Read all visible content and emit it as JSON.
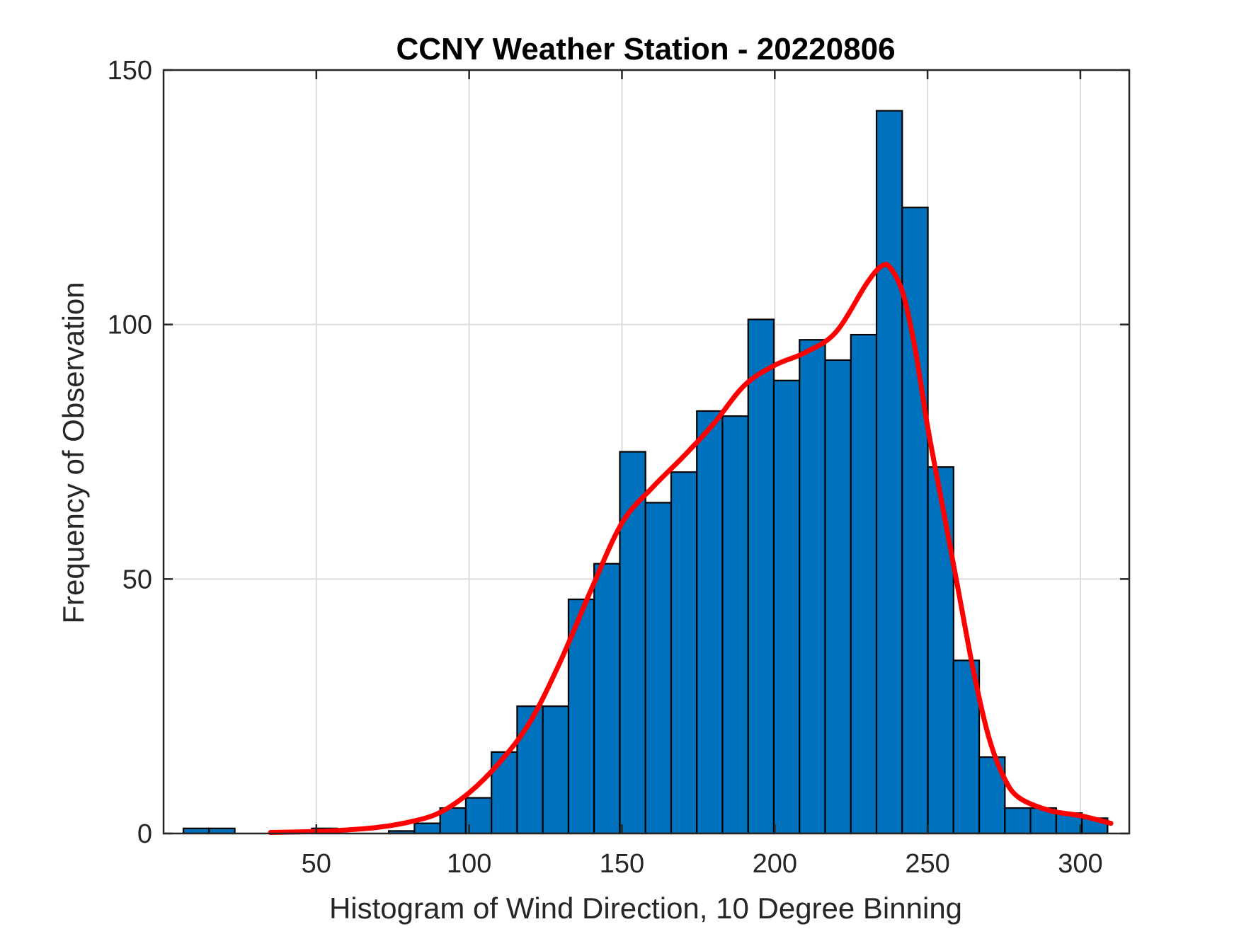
{
  "chart_data": {
    "type": "bar",
    "title": "CCNY Weather Station - 20220806",
    "xlabel": "Histogram of Wind Direction, 10 Degree Binning",
    "ylabel": "Frequency of Observation",
    "xlim": [
      0,
      316
    ],
    "ylim": [
      0,
      150
    ],
    "xticks": [
      50,
      100,
      150,
      200,
      250,
      300
    ],
    "yticks": [
      0,
      50,
      100,
      150
    ],
    "grid": true,
    "bin_width": 8.4,
    "bins": [
      {
        "x_start": 6.5,
        "count": 1
      },
      {
        "x_start": 14.9,
        "count": 1
      },
      {
        "x_start": 48.5,
        "count": 1
      },
      {
        "x_start": 73.7,
        "count": 0.5
      },
      {
        "x_start": 82.1,
        "count": 2
      },
      {
        "x_start": 90.5,
        "count": 5
      },
      {
        "x_start": 98.9,
        "count": 7
      },
      {
        "x_start": 107.3,
        "count": 16
      },
      {
        "x_start": 115.7,
        "count": 25
      },
      {
        "x_start": 124.1,
        "count": 25
      },
      {
        "x_start": 132.5,
        "count": 46
      },
      {
        "x_start": 140.9,
        "count": 53
      },
      {
        "x_start": 149.3,
        "count": 75
      },
      {
        "x_start": 157.7,
        "count": 65
      },
      {
        "x_start": 166.1,
        "count": 71
      },
      {
        "x_start": 174.5,
        "count": 83
      },
      {
        "x_start": 182.9,
        "count": 82
      },
      {
        "x_start": 191.3,
        "count": 101
      },
      {
        "x_start": 199.7,
        "count": 89
      },
      {
        "x_start": 208.1,
        "count": 97
      },
      {
        "x_start": 216.5,
        "count": 93
      },
      {
        "x_start": 224.9,
        "count": 98
      },
      {
        "x_start": 233.3,
        "count": 142
      },
      {
        "x_start": 241.7,
        "count": 123
      },
      {
        "x_start": 250.1,
        "count": 72
      },
      {
        "x_start": 258.5,
        "count": 34
      },
      {
        "x_start": 266.9,
        "count": 15
      },
      {
        "x_start": 275.3,
        "count": 5
      },
      {
        "x_start": 283.7,
        "count": 5
      },
      {
        "x_start": 292.1,
        "count": 4
      },
      {
        "x_start": 300.5,
        "count": 3
      }
    ],
    "fit_curve": {
      "x": [
        35,
        50,
        60,
        70,
        80,
        90,
        100,
        110,
        120,
        130,
        140,
        150,
        160,
        170,
        180,
        190,
        200,
        210,
        220,
        230,
        235,
        238,
        242,
        246,
        250,
        255,
        260,
        265,
        270,
        275,
        280,
        290,
        300,
        310
      ],
      "y": [
        0.2,
        0.4,
        0.7,
        1.2,
        2.2,
        4.0,
        8.0,
        14.0,
        22.0,
        34.0,
        48.0,
        61.0,
        68.0,
        74.0,
        80.5,
        88.0,
        92.0,
        94.5,
        98.5,
        108.0,
        111.5,
        111.0,
        106.0,
        95.0,
        80.0,
        64.0,
        48.0,
        32.0,
        19.0,
        11.0,
        7.0,
        4.5,
        3.5,
        2.0
      ]
    },
    "bar_color": "#0072BD",
    "curve_color": "#FF0000"
  }
}
